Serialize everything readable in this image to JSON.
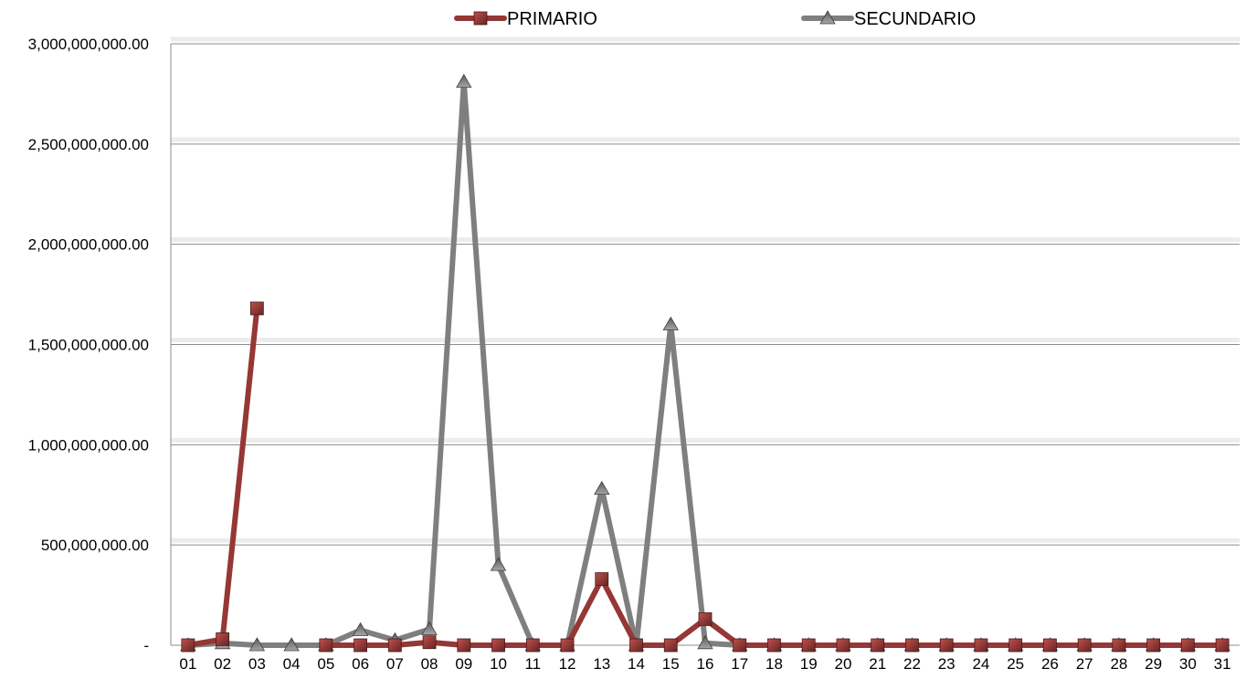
{
  "chart_data": {
    "type": "line",
    "categories": [
      "01",
      "02",
      "03",
      "04",
      "05",
      "06",
      "07",
      "08",
      "09",
      "10",
      "11",
      "12",
      "13",
      "14",
      "15",
      "16",
      "17",
      "18",
      "19",
      "20",
      "21",
      "22",
      "23",
      "24",
      "25",
      "26",
      "27",
      "28",
      "29",
      "30",
      "31"
    ],
    "series": [
      {
        "name": "PRIMARIO",
        "color": "#953735",
        "marker": "square",
        "values": [
          0,
          30000000,
          1680000000,
          null,
          0,
          0,
          0,
          15000000,
          0,
          0,
          0,
          0,
          330000000,
          0,
          0,
          130000000,
          0,
          0,
          0,
          0,
          0,
          0,
          0,
          0,
          0,
          0,
          0,
          0,
          0,
          0,
          0
        ]
      },
      {
        "name": "SECUNDARIO",
        "color": "#7f7f7f",
        "marker": "triangle",
        "values": [
          0,
          10000000,
          0,
          0,
          0,
          75000000,
          25000000,
          80000000,
          2810000000,
          400000000,
          0,
          0,
          780000000,
          0,
          1600000000,
          10000000,
          0,
          0,
          0,
          0,
          0,
          0,
          0,
          0,
          0,
          0,
          0,
          0,
          0,
          0,
          0
        ]
      }
    ],
    "yticks": [
      "-",
      "500,000,000.00",
      "1,000,000,000.00",
      "1,500,000,000.00",
      "2,000,000,000.00",
      "2,500,000,000.00",
      "3,000,000,000.00"
    ],
    "ylim": [
      0,
      3000000000
    ],
    "grid": true,
    "legend_position": "top",
    "title": "",
    "xlabel": "",
    "ylabel": ""
  }
}
